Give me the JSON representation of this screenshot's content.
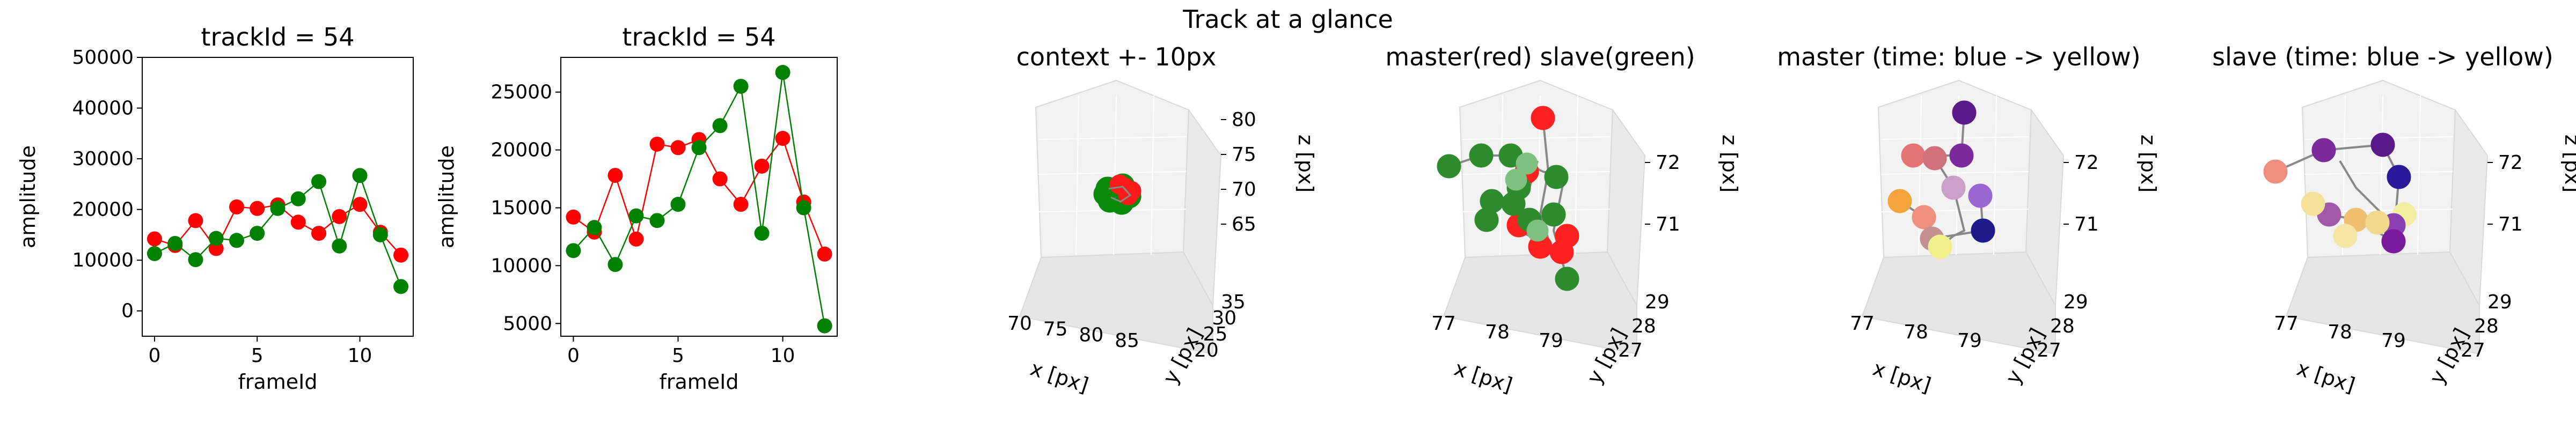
{
  "suptitle": "Track at a glance",
  "chart_data": [
    {
      "type": "line",
      "title": "trackId = 54",
      "xlabel": "frameId",
      "ylabel": "amplitude",
      "xlim": [
        -0.6,
        12.6
      ],
      "ylim": [
        -5000,
        50000
      ],
      "xticks": [
        "0",
        "5",
        "10"
      ],
      "xtick_values": [
        0,
        5,
        10
      ],
      "yticks": [
        "0",
        "10000",
        "20000",
        "30000",
        "40000",
        "50000"
      ],
      "ytick_values": [
        0,
        10000,
        20000,
        30000,
        40000,
        50000
      ],
      "x": [
        0,
        1,
        2,
        3,
        4,
        5,
        6,
        7,
        8,
        9,
        10,
        11,
        12
      ],
      "series": [
        {
          "color": "#ff0000",
          "values": [
            14200,
            12900,
            17800,
            12300,
            20500,
            20200,
            20900,
            17500,
            15300,
            18600,
            21000,
            15500,
            11000
          ]
        },
        {
          "color": "#008000",
          "values": [
            11300,
            13300,
            10100,
            14300,
            13900,
            15300,
            20200,
            22100,
            25500,
            12800,
            26700,
            15000,
            4800
          ]
        }
      ]
    },
    {
      "type": "line",
      "title": "trackId = 54",
      "xlabel": "frameId",
      "ylabel": "amplitude",
      "xlim": [
        -0.6,
        12.6
      ],
      "ylim": [
        3900,
        28000
      ],
      "xticks": [
        "0",
        "5",
        "10"
      ],
      "xtick_values": [
        0,
        5,
        10
      ],
      "yticks": [
        "5000",
        "10000",
        "15000",
        "20000",
        "25000"
      ],
      "ytick_values": [
        5000,
        10000,
        15000,
        20000,
        25000
      ],
      "x": [
        0,
        1,
        2,
        3,
        4,
        5,
        6,
        7,
        8,
        9,
        10,
        11,
        12
      ],
      "series": [
        {
          "color": "#ff0000",
          "values": [
            14200,
            12900,
            17800,
            12300,
            20500,
            20200,
            20900,
            17500,
            15300,
            18600,
            21000,
            15500,
            11000
          ]
        },
        {
          "color": "#008000",
          "values": [
            11300,
            13300,
            10100,
            14300,
            13900,
            15300,
            20200,
            22100,
            25500,
            12800,
            26700,
            15000,
            4800
          ]
        }
      ]
    },
    {
      "type": "scatter",
      "title": "context +- 10px",
      "xlabel": "x [px]",
      "ylabel": "y [px]",
      "zlabel": "z [px]",
      "xticks": [
        "70",
        "75",
        "80",
        "85"
      ],
      "yticks": [
        "20",
        "25",
        "30",
        "35"
      ],
      "zticks": [
        "65",
        "70",
        "75",
        "80"
      ],
      "points_red": 4,
      "points_green": 8
    },
    {
      "type": "scatter",
      "title": "master(red) slave(green)",
      "xlabel": "x [px]",
      "ylabel": "y [px]",
      "zlabel": "z [px]",
      "xticks": [
        "77",
        "78",
        "79"
      ],
      "yticks": [
        "27",
        "28",
        "29"
      ],
      "zticks": [
        "71",
        "72"
      ]
    },
    {
      "type": "scatter",
      "title": "master (time: blue -> yellow)",
      "xlabel": "x [px]",
      "ylabel": "y [px]",
      "zlabel": "z [px]",
      "xticks": [
        "77",
        "78",
        "79"
      ],
      "yticks": [
        "27",
        "28",
        "29"
      ],
      "zticks": [
        "71",
        "72"
      ]
    },
    {
      "type": "scatter",
      "title": "slave (time: blue -> yellow)",
      "xlabel": "x [px]",
      "ylabel": "y [px]",
      "zlabel": "z [px]",
      "xticks": [
        "77",
        "78",
        "79"
      ],
      "yticks": [
        "27",
        "28",
        "29"
      ],
      "zticks": [
        "71",
        "72"
      ]
    }
  ]
}
